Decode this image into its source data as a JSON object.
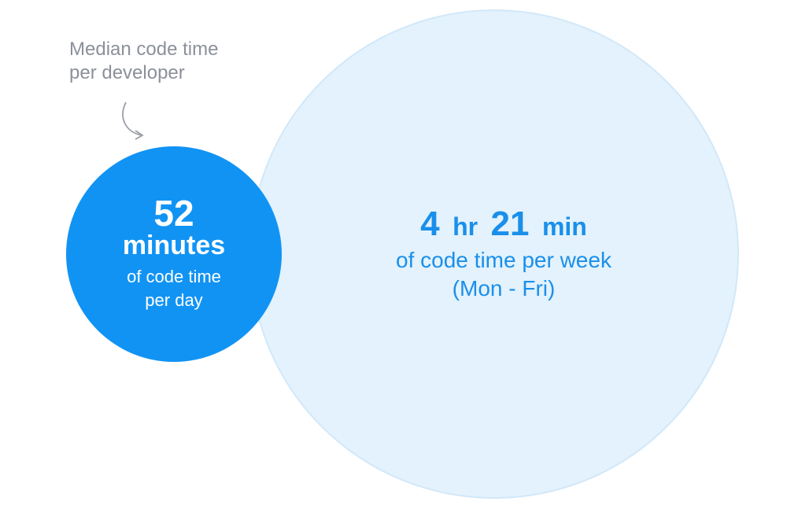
{
  "annotation": {
    "lines": [
      "Median code time",
      "per developer"
    ]
  },
  "daily": {
    "value": 52,
    "unit": "minutes",
    "lines": [
      "of code time",
      "per day"
    ]
  },
  "weekly": {
    "hours": 4,
    "hours_unit": "hr",
    "minutes": 21,
    "minutes_unit": "min",
    "lines": [
      "of code time per week",
      "(Mon - Fri)"
    ]
  }
}
